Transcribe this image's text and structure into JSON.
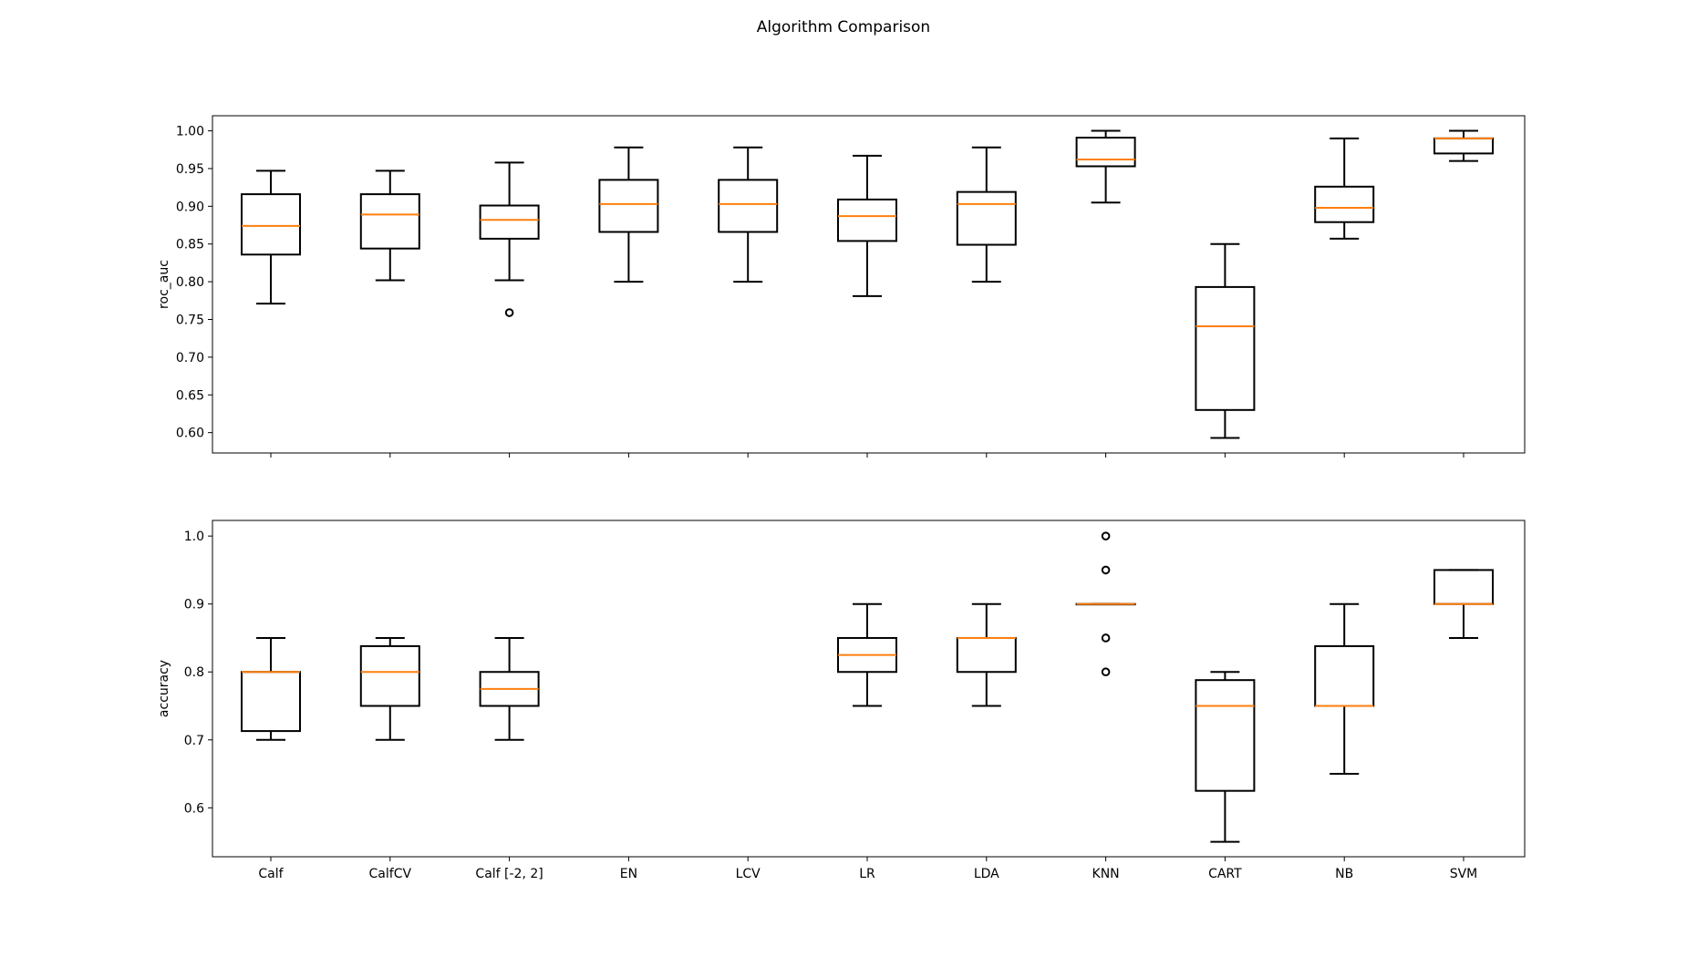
{
  "chart_data": {
    "title": "Algorithm Comparison",
    "type": "box",
    "categories": [
      "Calf",
      "CalfCV",
      "Calf [-2, 2]",
      "EN",
      "LCV",
      "LR",
      "LDA",
      "KNN",
      "CART",
      "NB",
      "SVM"
    ],
    "colors": {
      "box": "#000000",
      "median": "#ff7f0e",
      "flier": "#000000"
    },
    "subplots": [
      {
        "ylabel": "roc_auc",
        "ylim": [
          0.573,
          1.02
        ],
        "yticks": [
          0.6,
          0.65,
          0.7,
          0.75,
          0.8,
          0.85,
          0.9,
          0.95,
          1.0
        ],
        "ytick_labels": [
          "0.60",
          "0.65",
          "0.70",
          "0.75",
          "0.80",
          "0.85",
          "0.90",
          "0.95",
          "1.00"
        ],
        "show_xtick_labels": false,
        "boxes": [
          {
            "category": "Calf",
            "whislo": 0.771,
            "q1": 0.836,
            "med": 0.874,
            "q3": 0.916,
            "whishi": 0.947,
            "fliers": []
          },
          {
            "category": "CalfCV",
            "whislo": 0.802,
            "q1": 0.844,
            "med": 0.889,
            "q3": 0.916,
            "whishi": 0.947,
            "fliers": []
          },
          {
            "category": "Calf [-2, 2]",
            "whislo": 0.802,
            "q1": 0.857,
            "med": 0.882,
            "q3": 0.901,
            "whishi": 0.958,
            "fliers": [
              0.759
            ]
          },
          {
            "category": "EN",
            "whislo": 0.8,
            "q1": 0.866,
            "med": 0.903,
            "q3": 0.935,
            "whishi": 0.978,
            "fliers": []
          },
          {
            "category": "LCV",
            "whislo": 0.8,
            "q1": 0.866,
            "med": 0.903,
            "q3": 0.935,
            "whishi": 0.978,
            "fliers": []
          },
          {
            "category": "LR",
            "whislo": 0.781,
            "q1": 0.854,
            "med": 0.887,
            "q3": 0.909,
            "whishi": 0.967,
            "fliers": []
          },
          {
            "category": "LDA",
            "whislo": 0.8,
            "q1": 0.849,
            "med": 0.903,
            "q3": 0.919,
            "whishi": 0.978,
            "fliers": []
          },
          {
            "category": "KNN",
            "whislo": 0.905,
            "q1": 0.953,
            "med": 0.962,
            "q3": 0.991,
            "whishi": 1.0,
            "fliers": []
          },
          {
            "category": "CART",
            "whislo": 0.593,
            "q1": 0.63,
            "med": 0.741,
            "q3": 0.793,
            "whishi": 0.85,
            "fliers": []
          },
          {
            "category": "NB",
            "whislo": 0.857,
            "q1": 0.879,
            "med": 0.898,
            "q3": 0.926,
            "whishi": 0.99,
            "fliers": []
          },
          {
            "category": "SVM",
            "whislo": 0.96,
            "q1": 0.97,
            "med": 0.99,
            "q3": 0.99,
            "whishi": 1.0,
            "fliers": []
          }
        ]
      },
      {
        "ylabel": "accuracy",
        "ylim": [
          0.528,
          1.023
        ],
        "yticks": [
          0.6,
          0.7,
          0.8,
          0.9,
          1.0
        ],
        "ytick_labels": [
          "0.6",
          "0.7",
          "0.8",
          "0.9",
          "1.0"
        ],
        "show_xtick_labels": true,
        "boxes": [
          {
            "category": "Calf",
            "whislo": 0.7,
            "q1": 0.713,
            "med": 0.8,
            "q3": 0.8,
            "whishi": 0.85,
            "fliers": []
          },
          {
            "category": "CalfCV",
            "whislo": 0.7,
            "q1": 0.75,
            "med": 0.8,
            "q3": 0.838,
            "whishi": 0.85,
            "fliers": []
          },
          {
            "category": "Calf [-2, 2]",
            "whislo": 0.7,
            "q1": 0.75,
            "med": 0.775,
            "q3": 0.8,
            "whishi": 0.85,
            "fliers": []
          },
          {
            "category": "EN",
            "whislo": null,
            "q1": null,
            "med": null,
            "q3": null,
            "whishi": null,
            "fliers": []
          },
          {
            "category": "LCV",
            "whislo": null,
            "q1": null,
            "med": null,
            "q3": null,
            "whishi": null,
            "fliers": []
          },
          {
            "category": "LR",
            "whislo": 0.75,
            "q1": 0.8,
            "med": 0.825,
            "q3": 0.85,
            "whishi": 0.9,
            "fliers": []
          },
          {
            "category": "LDA",
            "whislo": 0.75,
            "q1": 0.8,
            "med": 0.85,
            "q3": 0.85,
            "whishi": 0.9,
            "fliers": []
          },
          {
            "category": "KNN",
            "whislo": 0.9,
            "q1": 0.9,
            "med": 0.9,
            "q3": 0.9,
            "whishi": 0.9,
            "fliers": [
              0.8,
              0.85,
              0.95,
              1.0
            ]
          },
          {
            "category": "CART",
            "whislo": 0.55,
            "q1": 0.625,
            "med": 0.75,
            "q3": 0.788,
            "whishi": 0.8,
            "fliers": []
          },
          {
            "category": "NB",
            "whislo": 0.65,
            "q1": 0.75,
            "med": 0.75,
            "q3": 0.838,
            "whishi": 0.9,
            "fliers": []
          },
          {
            "category": "SVM",
            "whislo": 0.85,
            "q1": 0.9,
            "med": 0.9,
            "q3": 0.95,
            "whishi": 0.95,
            "fliers": []
          }
        ]
      }
    ]
  }
}
